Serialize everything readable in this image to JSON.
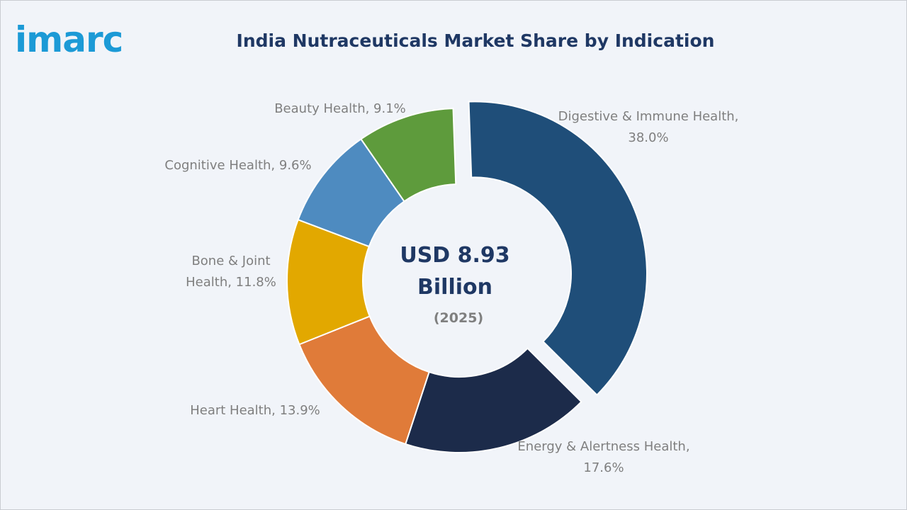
{
  "brand": {
    "logo_text": "imarc",
    "color": "#1c9ad6"
  },
  "chart_data": {
    "type": "pie",
    "variant": "donut",
    "title": "India Nutraceuticals Market Share by Indication",
    "unit": "%",
    "center": {
      "value_line1": "USD 8.93",
      "value_line2": "Billion",
      "year": "(2025)"
    },
    "slices": [
      {
        "name": "Digestive & Immune Health",
        "value": 38.0,
        "label_lines": [
          "Digestive & Immune Health,",
          "38.0%"
        ],
        "color": "#1f4e79",
        "exploded": true
      },
      {
        "name": "Energy & Alertness Health",
        "value": 17.6,
        "label_lines": [
          "Energy & Alertness Health,",
          "17.6%"
        ],
        "color": "#1c2b4a",
        "exploded": false
      },
      {
        "name": "Heart Health",
        "value": 13.9,
        "label_lines": [
          "Heart Health, 13.9%"
        ],
        "color": "#e07b39",
        "exploded": false
      },
      {
        "name": "Bone & Joint Health",
        "value": 11.8,
        "label_lines": [
          "Bone & Joint",
          "Health, 11.8%"
        ],
        "color": "#e2a800",
        "exploded": false
      },
      {
        "name": "Cognitive Health",
        "value": 9.6,
        "label_lines": [
          "Cognitive Health, 9.6%"
        ],
        "color": "#4e8bc0",
        "exploded": false
      },
      {
        "name": "Beauty Health",
        "value": 9.1,
        "label_lines": [
          "Beauty Health, 9.1%"
        ],
        "color": "#5e9b3c",
        "exploded": false
      }
    ]
  }
}
